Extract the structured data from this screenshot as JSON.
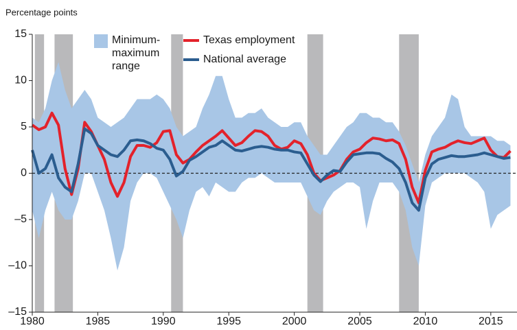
{
  "chart_data": {
    "type": "line",
    "y_label": "Percentage points",
    "xlim": [
      1980,
      2017
    ],
    "ylim": [
      -15,
      15
    ],
    "xticks": [
      1980,
      1985,
      1990,
      1995,
      2000,
      2005,
      2010,
      2015
    ],
    "yticks": [
      {
        "value": -15,
        "label": "–15"
      },
      {
        "value": -10,
        "label": "–10"
      },
      {
        "value": -5,
        "label": "–5"
      },
      0,
      5,
      10,
      15
    ],
    "reference_line": 0,
    "recessions": {
      "color": "#b9b9bb",
      "spans": [
        [
          1980.2,
          1980.9
        ],
        [
          1981.7,
          1983.1
        ],
        [
          1990.6,
          1991.5
        ],
        [
          2001.0,
          2002.2
        ],
        [
          2008.0,
          2009.5
        ]
      ]
    },
    "x": [
      1980,
      1980.5,
      1981,
      1981.5,
      1982,
      1982.5,
      1983,
      1983.5,
      1984,
      1984.5,
      1985,
      1985.5,
      1986,
      1986.5,
      1987,
      1987.5,
      1988,
      1988.5,
      1989,
      1989.5,
      1990,
      1990.5,
      1991,
      1991.5,
      1992,
      1992.5,
      1993,
      1993.5,
      1994,
      1994.5,
      1995,
      1995.5,
      1996,
      1996.5,
      1997,
      1997.5,
      1998,
      1998.5,
      1999,
      1999.5,
      2000,
      2000.5,
      2001,
      2001.5,
      2002,
      2002.5,
      2003,
      2003.5,
      2004,
      2004.5,
      2005,
      2005.5,
      2006,
      2006.5,
      2007,
      2007.5,
      2008,
      2008.5,
      2009,
      2009.5,
      2010,
      2010.5,
      2011,
      2011.5,
      2012,
      2012.5,
      2013,
      2013.5,
      2014,
      2014.5,
      2015,
      2015.5,
      2016,
      2016.5
    ],
    "range": {
      "name": "Minimum-maximum range",
      "color": "#a8c6e6",
      "high": [
        6,
        5.5,
        7,
        10,
        12,
        9,
        7,
        8,
        9,
        8,
        6,
        5.5,
        5,
        5.5,
        6,
        7,
        8,
        8,
        8,
        8.5,
        8,
        7,
        5,
        4,
        4.5,
        5,
        7,
        8.5,
        10.5,
        10.5,
        8,
        6,
        6,
        6.5,
        6.5,
        7,
        6,
        5.5,
        5,
        5,
        5.5,
        5.5,
        4,
        3,
        2,
        2,
        3,
        4,
        5,
        5.5,
        6.5,
        6.5,
        6,
        6,
        5.5,
        5.5,
        4.5,
        3,
        1,
        -1,
        2,
        4,
        5,
        6,
        8.5,
        8,
        5,
        4,
        4,
        4,
        4,
        3.5,
        3.5,
        3
      ],
      "low": [
        -4,
        -7,
        -4,
        -2,
        -4,
        -5,
        -5,
        -3,
        0,
        0,
        -2,
        -4,
        -7,
        -10.5,
        -8,
        -3,
        -1,
        0,
        0,
        -0.5,
        -2,
        -3.5,
        -5,
        -7,
        -4,
        -2,
        -1.5,
        -2.5,
        -1,
        -1.5,
        -2,
        -2,
        -1,
        -0.5,
        -0.5,
        0,
        -0.5,
        -1,
        -1,
        -1,
        -1,
        -1,
        -2.5,
        -4,
        -4.5,
        -3,
        -2,
        -1.5,
        -1,
        -1,
        -1.5,
        -6,
        -3,
        -1,
        -1,
        -1,
        -2,
        -4,
        -8,
        -10,
        -3.5,
        -1,
        -0.5,
        0,
        0,
        0,
        0,
        -0.5,
        -1,
        -2,
        -6,
        -4.5,
        -4,
        -3.5
      ]
    },
    "series": [
      {
        "name": "Texas employment",
        "color": "#e3222b",
        "values": [
          5.2,
          4.7,
          5.0,
          6.5,
          5.2,
          0.5,
          -2.3,
          0.5,
          5.5,
          4.5,
          3.0,
          1.5,
          -1.0,
          -2.5,
          -1.0,
          1.8,
          3.0,
          3.0,
          2.8,
          3.3,
          4.5,
          4.6,
          2.0,
          1.1,
          1.5,
          2.3,
          3.0,
          3.5,
          4.0,
          4.6,
          3.8,
          3.0,
          3.3,
          4.0,
          4.6,
          4.5,
          4.0,
          3.0,
          2.6,
          2.8,
          3.5,
          3.2,
          2.0,
          0.0,
          -0.8,
          -0.5,
          -0.2,
          0.3,
          1.5,
          2.3,
          2.6,
          3.3,
          3.8,
          3.7,
          3.5,
          3.6,
          3.2,
          1.5,
          -1.5,
          -3.2,
          0.3,
          2.3,
          2.6,
          2.8,
          3.2,
          3.5,
          3.3,
          3.2,
          3.5,
          3.8,
          2.5,
          1.8,
          1.7,
          2.4
        ]
      },
      {
        "name": "National average",
        "color": "#2b5d8f",
        "values": [
          2.5,
          0.0,
          0.5,
          2.0,
          -0.5,
          -1.5,
          -2.0,
          1.0,
          4.8,
          4.3,
          3.0,
          2.5,
          2.0,
          1.8,
          2.5,
          3.5,
          3.6,
          3.5,
          3.2,
          2.7,
          2.5,
          1.5,
          -0.3,
          0.2,
          1.4,
          1.8,
          2.3,
          2.8,
          3.0,
          3.5,
          3.0,
          2.5,
          2.4,
          2.6,
          2.8,
          2.9,
          2.8,
          2.6,
          2.5,
          2.5,
          2.3,
          2.2,
          1.0,
          -0.2,
          -0.9,
          -0.2,
          0.3,
          0.2,
          1.2,
          2.0,
          2.1,
          2.2,
          2.2,
          2.1,
          1.6,
          1.2,
          0.5,
          -1.0,
          -3.2,
          -4.0,
          -0.5,
          1.0,
          1.5,
          1.7,
          1.9,
          1.8,
          1.8,
          1.9,
          2.0,
          2.2,
          2.0,
          1.8,
          1.6,
          1.7
        ]
      }
    ]
  }
}
